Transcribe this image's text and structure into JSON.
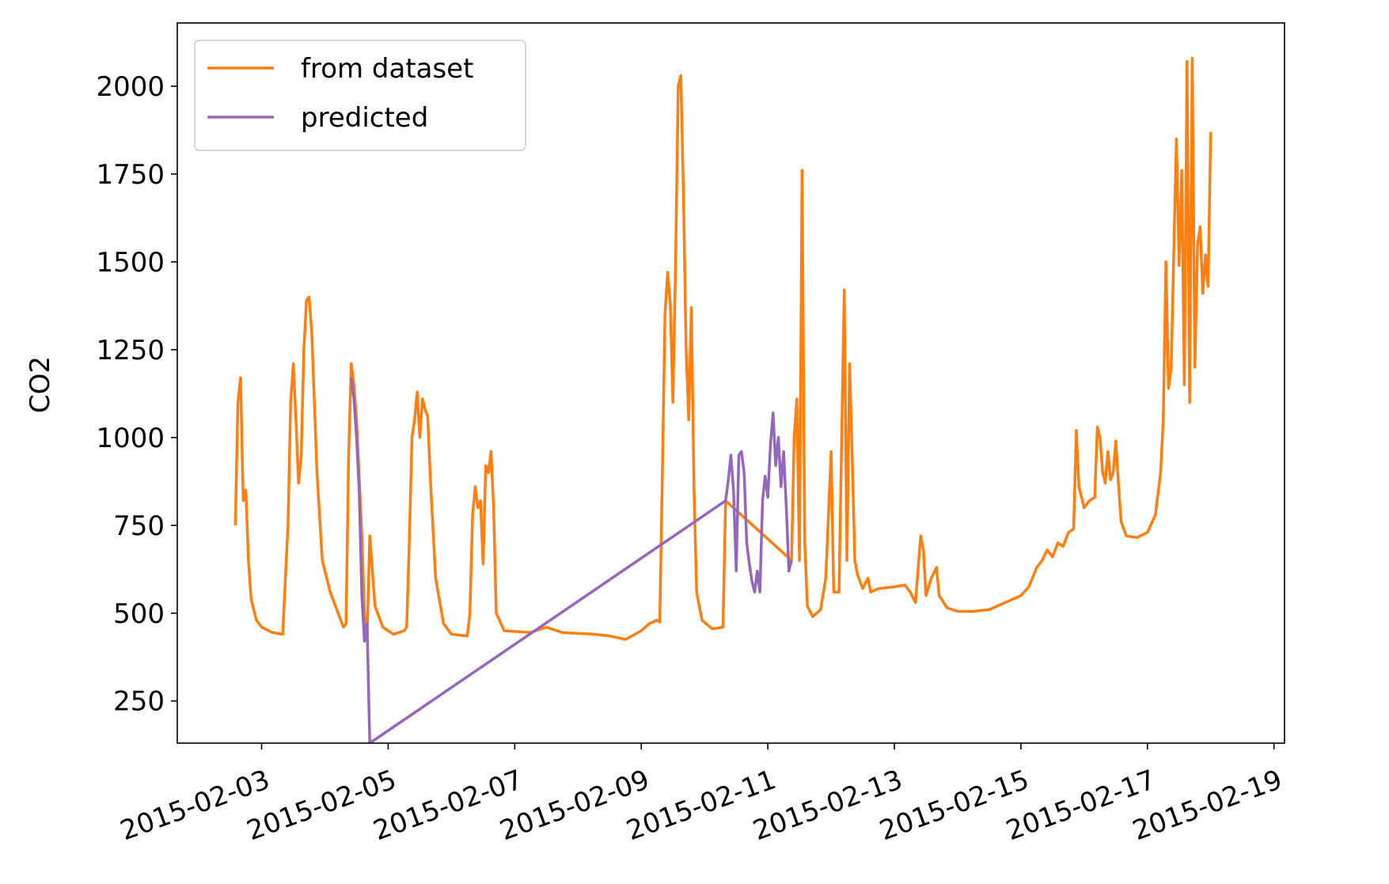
{
  "chart_data": {
    "type": "line",
    "title": "",
    "xlabel": "",
    "ylabel": "CO2",
    "x_axis_type": "date",
    "xlim": [
      "2015-02-01T16:00",
      "2015-02-19T04:00"
    ],
    "ylim": [
      130,
      2180
    ],
    "grid": false,
    "legend_position": "upper left",
    "x_ticks": [
      "2015-02-03",
      "2015-02-05",
      "2015-02-07",
      "2015-02-09",
      "2015-02-11",
      "2015-02-13",
      "2015-02-15",
      "2015-02-17",
      "2015-02-19"
    ],
    "y_ticks": [
      250,
      500,
      750,
      1000,
      1250,
      1500,
      1750,
      2000
    ],
    "series": [
      {
        "name": "from dataset",
        "color": "#ff7f0e",
        "points": [
          [
            "2015-02-02T14:00",
            750
          ],
          [
            "2015-02-02T15:00",
            1100
          ],
          [
            "2015-02-02T16:00",
            1170
          ],
          [
            "2015-02-02T17:00",
            820
          ],
          [
            "2015-02-02T18:00",
            850
          ],
          [
            "2015-02-02T19:00",
            650
          ],
          [
            "2015-02-02T20:00",
            540
          ],
          [
            "2015-02-02T22:00",
            480
          ],
          [
            "2015-02-03T00:00",
            460
          ],
          [
            "2015-02-03T04:00",
            445
          ],
          [
            "2015-02-03T08:00",
            440
          ],
          [
            "2015-02-03T09:00",
            600
          ],
          [
            "2015-02-03T10:00",
            750
          ],
          [
            "2015-02-03T11:00",
            1100
          ],
          [
            "2015-02-03T12:00",
            1210
          ],
          [
            "2015-02-03T13:00",
            1050
          ],
          [
            "2015-02-03T14:00",
            870
          ],
          [
            "2015-02-03T15:00",
            950
          ],
          [
            "2015-02-03T16:00",
            1250
          ],
          [
            "2015-02-03T17:00",
            1390
          ],
          [
            "2015-02-03T18:00",
            1400
          ],
          [
            "2015-02-03T19:00",
            1300
          ],
          [
            "2015-02-03T21:00",
            900
          ],
          [
            "2015-02-03T23:00",
            650
          ],
          [
            "2015-02-04T02:00",
            560
          ],
          [
            "2015-02-04T04:00",
            520
          ],
          [
            "2015-02-04T06:00",
            480
          ],
          [
            "2015-02-04T07:00",
            460
          ],
          [
            "2015-02-04T08:00",
            470
          ],
          [
            "2015-02-04T09:00",
            950
          ],
          [
            "2015-02-04T10:00",
            1210
          ],
          [
            "2015-02-04T11:00",
            1150
          ],
          [
            "2015-02-04T12:00",
            1050
          ],
          [
            "2015-02-04T14:00",
            720
          ],
          [
            "2015-02-04T15:00",
            500
          ],
          [
            "2015-02-04T16:00",
            430
          ],
          [
            "2015-02-04T17:00",
            720
          ],
          [
            "2015-02-04T18:00",
            620
          ],
          [
            "2015-02-04T19:00",
            520
          ],
          [
            "2015-02-04T22:00",
            460
          ],
          [
            "2015-02-05T02:00",
            440
          ],
          [
            "2015-02-05T06:00",
            450
          ],
          [
            "2015-02-05T07:00",
            460
          ],
          [
            "2015-02-05T08:00",
            700
          ],
          [
            "2015-02-05T09:00",
            1000
          ],
          [
            "2015-02-05T10:00",
            1050
          ],
          [
            "2015-02-05T11:00",
            1130
          ],
          [
            "2015-02-05T12:00",
            1000
          ],
          [
            "2015-02-05T13:00",
            1110
          ],
          [
            "2015-02-05T14:00",
            1080
          ],
          [
            "2015-02-05T15:00",
            1060
          ],
          [
            "2015-02-05T16:00",
            880
          ],
          [
            "2015-02-05T18:00",
            600
          ],
          [
            "2015-02-05T21:00",
            470
          ],
          [
            "2015-02-06T00:00",
            440
          ],
          [
            "2015-02-06T06:00",
            435
          ],
          [
            "2015-02-06T07:00",
            500
          ],
          [
            "2015-02-06T08:00",
            780
          ],
          [
            "2015-02-06T09:00",
            860
          ],
          [
            "2015-02-06T10:00",
            800
          ],
          [
            "2015-02-06T11:00",
            820
          ],
          [
            "2015-02-06T12:00",
            640
          ],
          [
            "2015-02-06T13:00",
            920
          ],
          [
            "2015-02-06T14:00",
            900
          ],
          [
            "2015-02-06T15:00",
            960
          ],
          [
            "2015-02-06T16:00",
            800
          ],
          [
            "2015-02-06T17:00",
            500
          ],
          [
            "2015-02-06T20:00",
            450
          ],
          [
            "2015-02-07T06:00",
            445
          ],
          [
            "2015-02-07T12:00",
            460
          ],
          [
            "2015-02-07T18:00",
            445
          ],
          [
            "2015-02-08T06:00",
            440
          ],
          [
            "2015-02-08T12:00",
            435
          ],
          [
            "2015-02-08T18:00",
            425
          ],
          [
            "2015-02-09T00:00",
            450
          ],
          [
            "2015-02-09T03:00",
            470
          ],
          [
            "2015-02-09T06:00",
            480
          ],
          [
            "2015-02-09T07:00",
            475
          ],
          [
            "2015-02-09T08:00",
            900
          ],
          [
            "2015-02-09T09:00",
            1350
          ],
          [
            "2015-02-09T10:00",
            1470
          ],
          [
            "2015-02-09T11:00",
            1380
          ],
          [
            "2015-02-09T12:00",
            1100
          ],
          [
            "2015-02-09T13:00",
            1500
          ],
          [
            "2015-02-09T14:00",
            2000
          ],
          [
            "2015-02-09T15:00",
            2030
          ],
          [
            "2015-02-09T16:00",
            1700
          ],
          [
            "2015-02-09T17:00",
            1250
          ],
          [
            "2015-02-09T18:00",
            1050
          ],
          [
            "2015-02-09T19:00",
            1370
          ],
          [
            "2015-02-09T20:00",
            850
          ],
          [
            "2015-02-09T21:00",
            560
          ],
          [
            "2015-02-09T23:00",
            480
          ],
          [
            "2015-02-10T03:00",
            455
          ],
          [
            "2015-02-10T07:00",
            460
          ],
          [
            "2015-02-10T08:00",
            820
          ],
          [
            "2015-02-11T09:00",
            650
          ],
          [
            "2015-02-11T10:00",
            1000
          ],
          [
            "2015-02-11T11:00",
            1110
          ],
          [
            "2015-02-11T12:00",
            650
          ],
          [
            "2015-02-11T13:00",
            1760
          ],
          [
            "2015-02-11T14:00",
            700
          ],
          [
            "2015-02-11T15:00",
            520
          ],
          [
            "2015-02-11T17:00",
            490
          ],
          [
            "2015-02-11T20:00",
            510
          ],
          [
            "2015-02-11T22:00",
            600
          ],
          [
            "2015-02-12T00:00",
            960
          ],
          [
            "2015-02-12T01:00",
            560
          ],
          [
            "2015-02-12T03:00",
            560
          ],
          [
            "2015-02-12T05:00",
            1420
          ],
          [
            "2015-02-12T06:00",
            650
          ],
          [
            "2015-02-12T07:00",
            1210
          ],
          [
            "2015-02-12T08:00",
            950
          ],
          [
            "2015-02-12T09:00",
            650
          ],
          [
            "2015-02-12T10:00",
            610
          ],
          [
            "2015-02-12T12:00",
            570
          ],
          [
            "2015-02-12T14:00",
            600
          ],
          [
            "2015-02-12T15:00",
            560
          ],
          [
            "2015-02-12T18:00",
            570
          ],
          [
            "2015-02-13T00:00",
            575
          ],
          [
            "2015-02-13T04:00",
            580
          ],
          [
            "2015-02-13T06:00",
            560
          ],
          [
            "2015-02-13T08:00",
            530
          ],
          [
            "2015-02-13T10:00",
            720
          ],
          [
            "2015-02-13T11:00",
            680
          ],
          [
            "2015-02-13T12:00",
            550
          ],
          [
            "2015-02-13T14:00",
            600
          ],
          [
            "2015-02-13T16:00",
            630
          ],
          [
            "2015-02-13T17:00",
            550
          ],
          [
            "2015-02-13T20:00",
            515
          ],
          [
            "2015-02-14T00:00",
            505
          ],
          [
            "2015-02-14T06:00",
            505
          ],
          [
            "2015-02-14T12:00",
            510
          ],
          [
            "2015-02-14T18:00",
            530
          ],
          [
            "2015-02-15T00:00",
            550
          ],
          [
            "2015-02-15T03:00",
            575
          ],
          [
            "2015-02-15T06:00",
            630
          ],
          [
            "2015-02-15T08:00",
            650
          ],
          [
            "2015-02-15T10:00",
            680
          ],
          [
            "2015-02-15T12:00",
            660
          ],
          [
            "2015-02-15T14:00",
            700
          ],
          [
            "2015-02-15T16:00",
            690
          ],
          [
            "2015-02-15T18:00",
            730
          ],
          [
            "2015-02-15T20:00",
            740
          ],
          [
            "2015-02-15T21:00",
            1020
          ],
          [
            "2015-02-15T22:00",
            860
          ],
          [
            "2015-02-16T00:00",
            800
          ],
          [
            "2015-02-16T02:00",
            820
          ],
          [
            "2015-02-16T04:00",
            830
          ],
          [
            "2015-02-16T05:00",
            1030
          ],
          [
            "2015-02-16T06:00",
            1000
          ],
          [
            "2015-02-16T07:00",
            900
          ],
          [
            "2015-02-16T08:00",
            870
          ],
          [
            "2015-02-16T09:00",
            960
          ],
          [
            "2015-02-16T10:00",
            880
          ],
          [
            "2015-02-16T11:00",
            900
          ],
          [
            "2015-02-16T12:00",
            990
          ],
          [
            "2015-02-16T13:00",
            870
          ],
          [
            "2015-02-16T14:00",
            760
          ],
          [
            "2015-02-16T16:00",
            720
          ],
          [
            "2015-02-16T20:00",
            715
          ],
          [
            "2015-02-17T00:00",
            730
          ],
          [
            "2015-02-17T03:00",
            780
          ],
          [
            "2015-02-17T05:00",
            900
          ],
          [
            "2015-02-17T06:00",
            1050
          ],
          [
            "2015-02-17T07:00",
            1500
          ],
          [
            "2015-02-17T08:00",
            1140
          ],
          [
            "2015-02-17T09:00",
            1200
          ],
          [
            "2015-02-17T10:00",
            1530
          ],
          [
            "2015-02-17T11:00",
            1850
          ],
          [
            "2015-02-17T12:00",
            1490
          ],
          [
            "2015-02-17T13:00",
            1760
          ],
          [
            "2015-02-17T14:00",
            1150
          ],
          [
            "2015-02-17T15:00",
            2070
          ],
          [
            "2015-02-17T16:00",
            1100
          ],
          [
            "2015-02-17T17:00",
            2080
          ],
          [
            "2015-02-17T18:00",
            1200
          ],
          [
            "2015-02-17T19:00",
            1550
          ],
          [
            "2015-02-17T20:00",
            1600
          ],
          [
            "2015-02-17T21:00",
            1410
          ],
          [
            "2015-02-17T22:00",
            1520
          ],
          [
            "2015-02-17T23:00",
            1430
          ],
          [
            "2015-02-18T00:00",
            1870
          ]
        ]
      },
      {
        "name": "predicted",
        "color": "#9467bd",
        "points": [
          [
            "2015-02-04T10:00",
            1170
          ],
          [
            "2015-02-04T11:00",
            1110
          ],
          [
            "2015-02-04T12:00",
            1000
          ],
          [
            "2015-02-04T13:00",
            850
          ],
          [
            "2015-02-04T14:00",
            550
          ],
          [
            "2015-02-04T15:00",
            420
          ],
          [
            "2015-02-04T16:00",
            470
          ],
          [
            "2015-02-04T17:00",
            130
          ],
          [
            "2015-02-10T08:00",
            820
          ],
          [
            "2015-02-10T09:00",
            880
          ],
          [
            "2015-02-10T10:00",
            950
          ],
          [
            "2015-02-10T11:00",
            850
          ],
          [
            "2015-02-10T12:00",
            620
          ],
          [
            "2015-02-10T13:00",
            950
          ],
          [
            "2015-02-10T14:00",
            960
          ],
          [
            "2015-02-10T15:00",
            900
          ],
          [
            "2015-02-10T16:00",
            700
          ],
          [
            "2015-02-10T17:00",
            640
          ],
          [
            "2015-02-10T18:00",
            590
          ],
          [
            "2015-02-10T19:00",
            560
          ],
          [
            "2015-02-10T20:00",
            620
          ],
          [
            "2015-02-10T21:00",
            560
          ],
          [
            "2015-02-10T22:00",
            820
          ],
          [
            "2015-02-10T23:00",
            890
          ],
          [
            "2015-02-11T00:00",
            830
          ],
          [
            "2015-02-11T01:00",
            980
          ],
          [
            "2015-02-11T02:00",
            1070
          ],
          [
            "2015-02-11T03:00",
            920
          ],
          [
            "2015-02-11T04:00",
            1000
          ],
          [
            "2015-02-11T05:00",
            860
          ],
          [
            "2015-02-11T06:00",
            960
          ],
          [
            "2015-02-11T07:00",
            800
          ],
          [
            "2015-02-11T08:00",
            620
          ],
          [
            "2015-02-11T09:00",
            650
          ]
        ]
      }
    ]
  }
}
